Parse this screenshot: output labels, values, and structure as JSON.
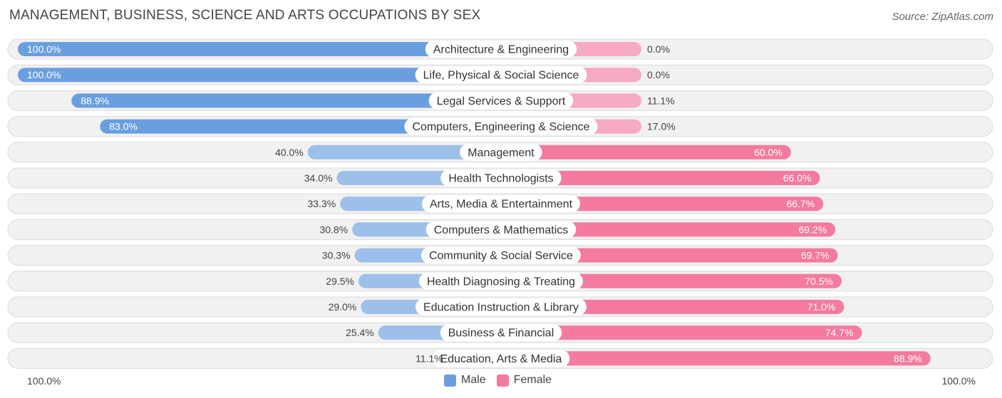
{
  "header": {
    "title": "MANAGEMENT, BUSINESS, SCIENCE AND ARTS OCCUPATIONS BY SEX",
    "source": "Source: ZipAtlas.com"
  },
  "colors": {
    "male_strong": "#6a9fdf",
    "male_light": "#9dc0ea",
    "female_strong": "#f47aa0",
    "female_light": "#f8a9c3"
  },
  "chart_data": {
    "type": "bar",
    "orientation": "horizontal-diverging",
    "title": "MANAGEMENT, BUSINESS, SCIENCE AND ARTS OCCUPATIONS BY SEX",
    "categories": [
      "Architecture & Engineering",
      "Life, Physical & Social Science",
      "Legal Services & Support",
      "Computers, Engineering & Science",
      "Management",
      "Health Technologists",
      "Arts, Media & Entertainment",
      "Computers & Mathematics",
      "Community & Social Service",
      "Health Diagnosing & Treating",
      "Education Instruction & Library",
      "Business & Financial",
      "Education, Arts & Media"
    ],
    "series": [
      {
        "name": "Male",
        "values": [
          100.0,
          100.0,
          88.9,
          83.0,
          40.0,
          34.0,
          33.3,
          30.8,
          30.3,
          29.5,
          29.0,
          25.4,
          11.1
        ],
        "labels": [
          "100.0%",
          "100.0%",
          "88.9%",
          "83.0%",
          "40.0%",
          "34.0%",
          "33.3%",
          "30.8%",
          "30.3%",
          "29.5%",
          "29.0%",
          "25.4%",
          "11.1%"
        ]
      },
      {
        "name": "Female",
        "values": [
          0.0,
          0.0,
          11.1,
          17.0,
          60.0,
          66.0,
          66.7,
          69.2,
          69.7,
          70.5,
          71.0,
          74.7,
          88.9
        ],
        "labels": [
          "0.0%",
          "0.0%",
          "11.1%",
          "17.0%",
          "60.0%",
          "66.0%",
          "66.7%",
          "69.2%",
          "69.7%",
          "70.5%",
          "71.0%",
          "74.7%",
          "88.9%"
        ]
      }
    ],
    "xlim": [
      0,
      100
    ],
    "axis_left_label": "100.0%",
    "axis_right_label": "100.0%",
    "legend_position": "bottom-center"
  }
}
